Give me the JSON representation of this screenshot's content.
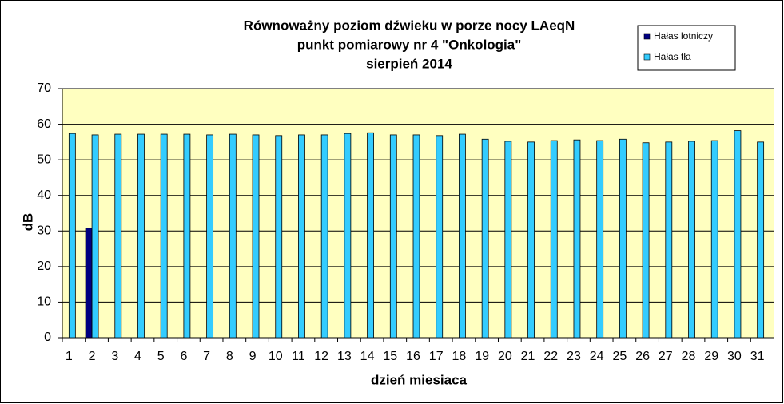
{
  "chart_data": {
    "type": "bar",
    "title": [
      "Równoważny poziom dźwieku w porze nocy LAeqN",
      "punkt pomiarowy nr 4 \"Onkologia\"",
      "sierpień 2014"
    ],
    "x_label": "dzień miesiaca",
    "y_label": "dB",
    "categories": [
      "1",
      "2",
      "3",
      "4",
      "5",
      "6",
      "7",
      "8",
      "9",
      "10",
      "11",
      "12",
      "13",
      "14",
      "15",
      "16",
      "17",
      "18",
      "19",
      "20",
      "21",
      "22",
      "23",
      "24",
      "25",
      "26",
      "27",
      "28",
      "29",
      "30",
      "31"
    ],
    "series": [
      {
        "name": "Hałas lotniczy",
        "color": "#000080",
        "values": [
          null,
          30.8,
          null,
          null,
          null,
          null,
          null,
          null,
          null,
          null,
          null,
          null,
          null,
          null,
          null,
          null,
          null,
          null,
          null,
          null,
          null,
          null,
          null,
          null,
          null,
          null,
          null,
          null,
          null,
          null,
          null
        ]
      },
      {
        "name": "Hałas tła",
        "color": "#33ccff",
        "values": [
          57.4,
          57.0,
          57.2,
          57.2,
          57.2,
          57.2,
          57.0,
          57.2,
          57.0,
          56.8,
          57.0,
          57.0,
          57.4,
          57.6,
          57.0,
          57.0,
          56.8,
          57.2,
          55.8,
          55.2,
          55.0,
          55.4,
          55.6,
          55.4,
          55.8,
          54.8,
          55.0,
          55.2,
          55.4,
          58.2,
          55.0
        ]
      }
    ],
    "ylim": [
      0,
      70
    ],
    "yticks": [
      0,
      10,
      20,
      30,
      40,
      50,
      60,
      70
    ],
    "grid": true,
    "legend": "top-right"
  }
}
